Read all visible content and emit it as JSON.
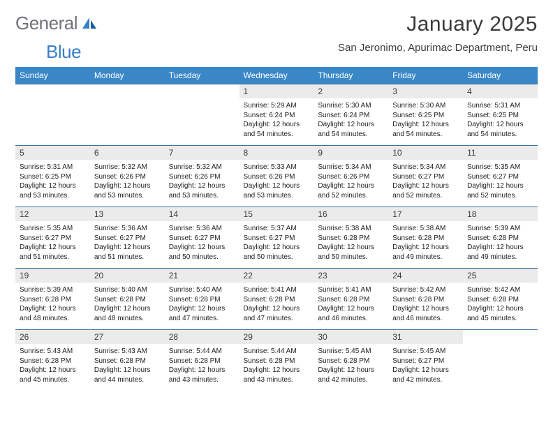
{
  "colors": {
    "header_bg": "#3a87c8",
    "header_text": "#ffffff",
    "row_divider": "#3a6fa0",
    "daynum_bg": "#ebebeb",
    "text": "#212121",
    "logo_gray": "#6f7378",
    "logo_blue": "#3a7fc3",
    "page_bg": "#ffffff"
  },
  "logo": {
    "part1": "General",
    "part2": "Blue"
  },
  "title": "January 2025",
  "location": "San Jeronimo, Apurimac Department, Peru",
  "day_headers": [
    "Sunday",
    "Monday",
    "Tuesday",
    "Wednesday",
    "Thursday",
    "Friday",
    "Saturday"
  ],
  "weeks": [
    [
      {
        "empty": true
      },
      {
        "empty": true
      },
      {
        "empty": true
      },
      {
        "n": "1",
        "sunrise": "5:29 AM",
        "sunset": "6:24 PM",
        "daylight": "12 hours and 54 minutes."
      },
      {
        "n": "2",
        "sunrise": "5:30 AM",
        "sunset": "6:24 PM",
        "daylight": "12 hours and 54 minutes."
      },
      {
        "n": "3",
        "sunrise": "5:30 AM",
        "sunset": "6:25 PM",
        "daylight": "12 hours and 54 minutes."
      },
      {
        "n": "4",
        "sunrise": "5:31 AM",
        "sunset": "6:25 PM",
        "daylight": "12 hours and 54 minutes."
      }
    ],
    [
      {
        "n": "5",
        "sunrise": "5:31 AM",
        "sunset": "6:25 PM",
        "daylight": "12 hours and 53 minutes."
      },
      {
        "n": "6",
        "sunrise": "5:32 AM",
        "sunset": "6:26 PM",
        "daylight": "12 hours and 53 minutes."
      },
      {
        "n": "7",
        "sunrise": "5:32 AM",
        "sunset": "6:26 PM",
        "daylight": "12 hours and 53 minutes."
      },
      {
        "n": "8",
        "sunrise": "5:33 AM",
        "sunset": "6:26 PM",
        "daylight": "12 hours and 53 minutes."
      },
      {
        "n": "9",
        "sunrise": "5:34 AM",
        "sunset": "6:26 PM",
        "daylight": "12 hours and 52 minutes."
      },
      {
        "n": "10",
        "sunrise": "5:34 AM",
        "sunset": "6:27 PM",
        "daylight": "12 hours and 52 minutes."
      },
      {
        "n": "11",
        "sunrise": "5:35 AM",
        "sunset": "6:27 PM",
        "daylight": "12 hours and 52 minutes."
      }
    ],
    [
      {
        "n": "12",
        "sunrise": "5:35 AM",
        "sunset": "6:27 PM",
        "daylight": "12 hours and 51 minutes."
      },
      {
        "n": "13",
        "sunrise": "5:36 AM",
        "sunset": "6:27 PM",
        "daylight": "12 hours and 51 minutes."
      },
      {
        "n": "14",
        "sunrise": "5:36 AM",
        "sunset": "6:27 PM",
        "daylight": "12 hours and 50 minutes."
      },
      {
        "n": "15",
        "sunrise": "5:37 AM",
        "sunset": "6:27 PM",
        "daylight": "12 hours and 50 minutes."
      },
      {
        "n": "16",
        "sunrise": "5:38 AM",
        "sunset": "6:28 PM",
        "daylight": "12 hours and 50 minutes."
      },
      {
        "n": "17",
        "sunrise": "5:38 AM",
        "sunset": "6:28 PM",
        "daylight": "12 hours and 49 minutes."
      },
      {
        "n": "18",
        "sunrise": "5:39 AM",
        "sunset": "6:28 PM",
        "daylight": "12 hours and 49 minutes."
      }
    ],
    [
      {
        "n": "19",
        "sunrise": "5:39 AM",
        "sunset": "6:28 PM",
        "daylight": "12 hours and 48 minutes."
      },
      {
        "n": "20",
        "sunrise": "5:40 AM",
        "sunset": "6:28 PM",
        "daylight": "12 hours and 48 minutes."
      },
      {
        "n": "21",
        "sunrise": "5:40 AM",
        "sunset": "6:28 PM",
        "daylight": "12 hours and 47 minutes."
      },
      {
        "n": "22",
        "sunrise": "5:41 AM",
        "sunset": "6:28 PM",
        "daylight": "12 hours and 47 minutes."
      },
      {
        "n": "23",
        "sunrise": "5:41 AM",
        "sunset": "6:28 PM",
        "daylight": "12 hours and 46 minutes."
      },
      {
        "n": "24",
        "sunrise": "5:42 AM",
        "sunset": "6:28 PM",
        "daylight": "12 hours and 46 minutes."
      },
      {
        "n": "25",
        "sunrise": "5:42 AM",
        "sunset": "6:28 PM",
        "daylight": "12 hours and 45 minutes."
      }
    ],
    [
      {
        "n": "26",
        "sunrise": "5:43 AM",
        "sunset": "6:28 PM",
        "daylight": "12 hours and 45 minutes."
      },
      {
        "n": "27",
        "sunrise": "5:43 AM",
        "sunset": "6:28 PM",
        "daylight": "12 hours and 44 minutes."
      },
      {
        "n": "28",
        "sunrise": "5:44 AM",
        "sunset": "6:28 PM",
        "daylight": "12 hours and 43 minutes."
      },
      {
        "n": "29",
        "sunrise": "5:44 AM",
        "sunset": "6:28 PM",
        "daylight": "12 hours and 43 minutes."
      },
      {
        "n": "30",
        "sunrise": "5:45 AM",
        "sunset": "6:28 PM",
        "daylight": "12 hours and 42 minutes."
      },
      {
        "n": "31",
        "sunrise": "5:45 AM",
        "sunset": "6:27 PM",
        "daylight": "12 hours and 42 minutes."
      },
      {
        "empty": true
      }
    ]
  ],
  "labels": {
    "sunrise": "Sunrise: ",
    "sunset": "Sunset: ",
    "daylight": "Daylight: "
  }
}
